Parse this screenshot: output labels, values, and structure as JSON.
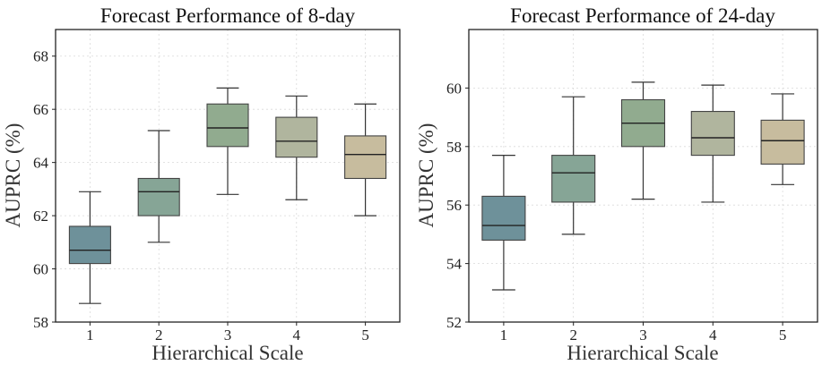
{
  "chart_data": [
    {
      "type": "box",
      "title": "Forecast Performance of 8-day",
      "xlabel": "Hierarchical Scale",
      "ylabel": "AUPRC (%)",
      "ylim": [
        58,
        69
      ],
      "yticks": [
        58,
        60,
        62,
        64,
        66,
        68
      ],
      "categories": [
        "1",
        "2",
        "3",
        "4",
        "5"
      ],
      "boxes": [
        {
          "category": "1",
          "whislo": 58.7,
          "q1": 60.2,
          "med": 60.7,
          "q3": 61.6,
          "whishi": 62.9
        },
        {
          "category": "2",
          "whislo": 61.0,
          "q1": 62.0,
          "med": 62.9,
          "q3": 63.4,
          "whishi": 65.2
        },
        {
          "category": "3",
          "whislo": 62.8,
          "q1": 64.6,
          "med": 65.3,
          "q3": 66.2,
          "whishi": 66.8
        },
        {
          "category": "4",
          "whislo": 62.6,
          "q1": 64.2,
          "med": 64.8,
          "q3": 65.7,
          "whishi": 66.5
        },
        {
          "category": "5",
          "whislo": 62.0,
          "q1": 63.4,
          "med": 64.3,
          "q3": 65.0,
          "whishi": 66.2
        }
      ],
      "grid": true
    },
    {
      "type": "box",
      "title": "Forecast Performance of 24-day",
      "xlabel": "Hierarchical Scale",
      "ylabel": "AUPRC (%)",
      "ylim": [
        52,
        62
      ],
      "yticks": [
        52,
        54,
        56,
        58,
        60
      ],
      "categories": [
        "1",
        "2",
        "3",
        "4",
        "5"
      ],
      "boxes": [
        {
          "category": "1",
          "whislo": 53.1,
          "q1": 54.8,
          "med": 55.3,
          "q3": 56.3,
          "whishi": 57.7
        },
        {
          "category": "2",
          "whislo": 55.0,
          "q1": 56.1,
          "med": 57.1,
          "q3": 57.7,
          "whishi": 59.7
        },
        {
          "category": "3",
          "whislo": 56.2,
          "q1": 58.0,
          "med": 58.8,
          "q3": 59.6,
          "whishi": 60.2
        },
        {
          "category": "4",
          "whislo": 56.1,
          "q1": 57.7,
          "med": 58.3,
          "q3": 59.2,
          "whishi": 60.1
        },
        {
          "category": "5",
          "whislo": 56.7,
          "q1": 57.4,
          "med": 58.2,
          "q3": 58.9,
          "whishi": 59.8
        }
      ],
      "grid": true
    }
  ],
  "colors": {
    "box_fills": [
      "#6e919a",
      "#86a596",
      "#91ab8f",
      "#b0b59e",
      "#c7bc9e"
    ],
    "box_edges": [
      "#3c5560",
      "#4f6b60",
      "#4f6b4f",
      "#59604a",
      "#2e3d66"
    ]
  }
}
